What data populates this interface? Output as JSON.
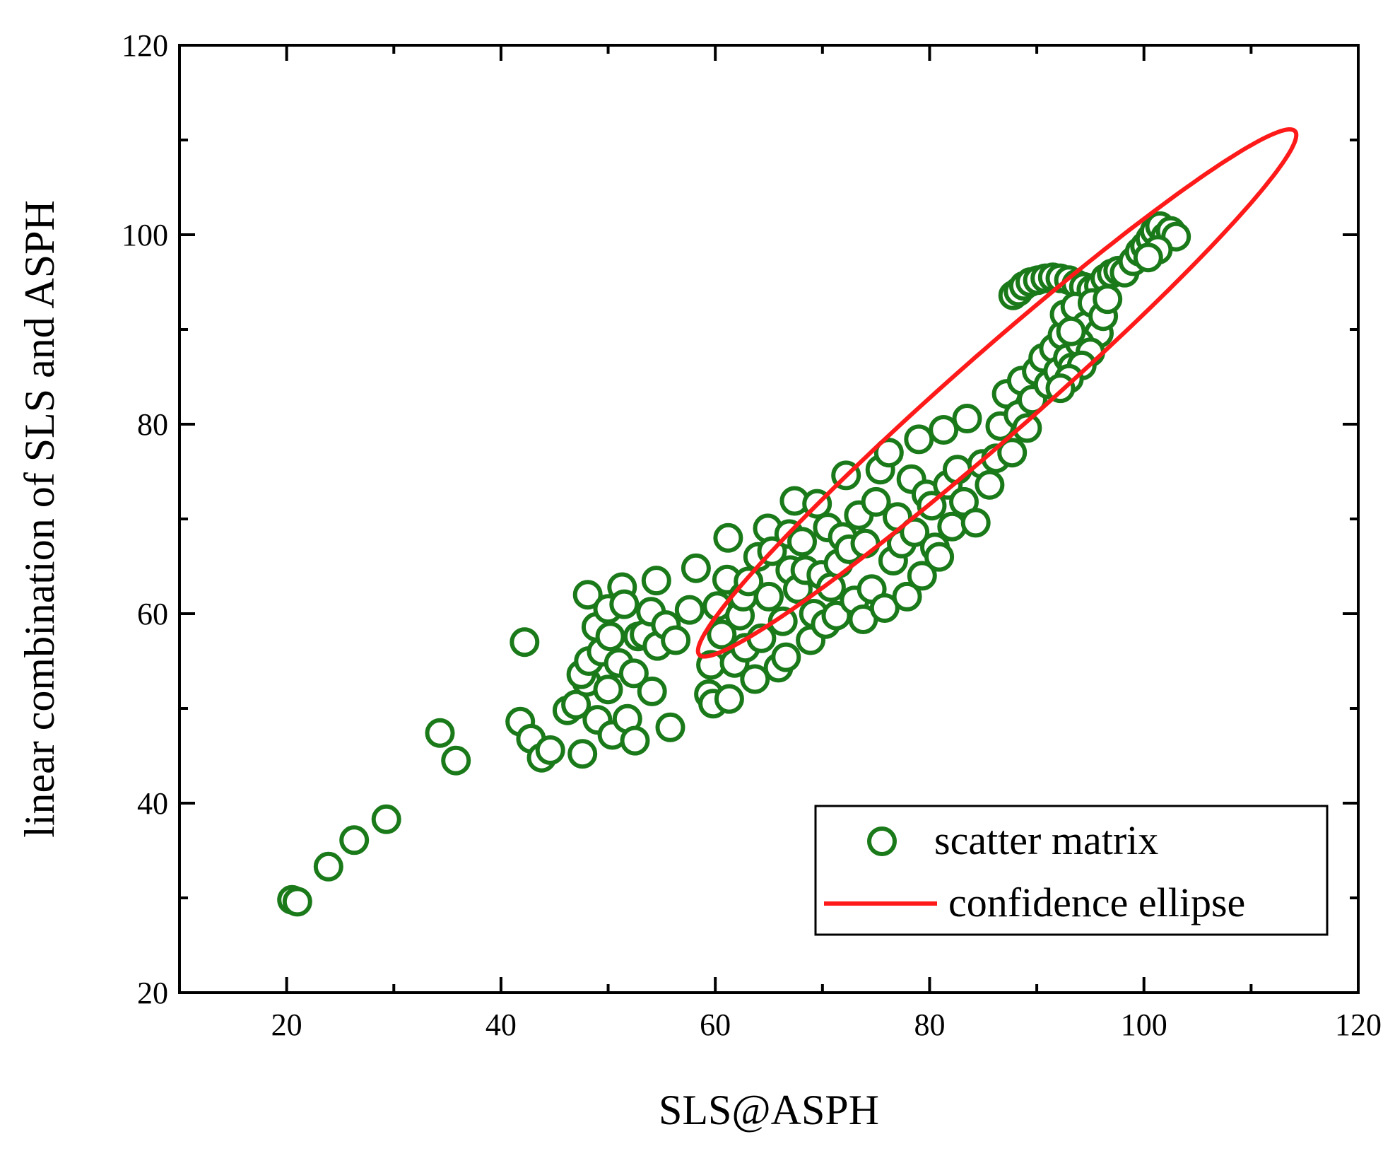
{
  "chart_data": {
    "type": "scatter",
    "xlabel": "SLS@ASPH",
    "ylabel": "linear combination of SLS and ASPH",
    "xlim": [
      10,
      120
    ],
    "ylim": [
      20,
      120
    ],
    "xticks": [
      20,
      40,
      60,
      80,
      100,
      120
    ],
    "yticks": [
      20,
      40,
      60,
      80,
      100,
      120
    ],
    "grid": false,
    "legend_position": "bottom-right",
    "colors": {
      "scatter": "#1a7a1a",
      "ellipse": "#ff1a1a"
    },
    "series": [
      {
        "name": "scatter matrix",
        "kind": "markers",
        "points": [
          [
            20.5,
            29.8
          ],
          [
            21.0,
            29.6
          ],
          [
            23.9,
            33.3
          ],
          [
            26.3,
            36.1
          ],
          [
            29.3,
            38.3
          ],
          [
            34.3,
            47.4
          ],
          [
            35.8,
            44.5
          ],
          [
            42.2,
            57.0
          ],
          [
            41.8,
            48.6
          ],
          [
            42.8,
            46.8
          ],
          [
            43.8,
            44.8
          ],
          [
            44.6,
            45.6
          ],
          [
            46.2,
            49.8
          ],
          [
            47.6,
            45.2
          ],
          [
            47.0,
            50.4
          ],
          [
            48.0,
            52.8
          ],
          [
            47.5,
            53.6
          ],
          [
            48.2,
            55.0
          ],
          [
            48.1,
            62.0
          ],
          [
            48.9,
            58.6
          ],
          [
            49.0,
            48.8
          ],
          [
            49.4,
            56.0
          ],
          [
            50.0,
            52.0
          ],
          [
            50.0,
            60.5
          ],
          [
            50.2,
            57.6
          ],
          [
            50.4,
            47.2
          ],
          [
            51.3,
            62.8
          ],
          [
            51.5,
            61.0
          ],
          [
            51.0,
            54.8
          ],
          [
            51.8,
            48.9
          ],
          [
            52.4,
            53.7
          ],
          [
            52.5,
            46.6
          ],
          [
            52.8,
            57.6
          ],
          [
            53.4,
            57.8
          ],
          [
            54.0,
            60.2
          ],
          [
            54.5,
            63.5
          ],
          [
            54.6,
            56.6
          ],
          [
            54.1,
            51.8
          ],
          [
            55.4,
            58.8
          ],
          [
            55.8,
            48.0
          ],
          [
            56.3,
            57.2
          ],
          [
            57.6,
            60.4
          ],
          [
            58.2,
            64.8
          ],
          [
            59.4,
            51.5
          ],
          [
            59.6,
            54.6
          ],
          [
            59.8,
            50.5
          ],
          [
            60.2,
            60.8
          ],
          [
            60.6,
            57.8
          ],
          [
            61.1,
            63.6
          ],
          [
            61.3,
            51.0
          ],
          [
            61.2,
            68.0
          ],
          [
            61.8,
            54.8
          ],
          [
            62.3,
            59.8
          ],
          [
            62.6,
            61.8
          ],
          [
            62.8,
            56.4
          ],
          [
            63.1,
            63.4
          ],
          [
            63.7,
            53.1
          ],
          [
            64.0,
            66.0
          ],
          [
            64.3,
            57.4
          ],
          [
            64.9,
            69.0
          ],
          [
            65.0,
            61.8
          ],
          [
            65.3,
            66.6
          ],
          [
            65.9,
            54.3
          ],
          [
            66.3,
            59.2
          ],
          [
            66.6,
            55.4
          ],
          [
            66.9,
            68.4
          ],
          [
            67.0,
            64.6
          ],
          [
            67.4,
            71.9
          ],
          [
            67.7,
            62.6
          ],
          [
            68.1,
            67.6
          ],
          [
            68.4,
            64.6
          ],
          [
            68.9,
            57.2
          ],
          [
            69.2,
            60.0
          ],
          [
            69.5,
            71.6
          ],
          [
            69.9,
            64.1
          ],
          [
            70.3,
            58.9
          ],
          [
            70.5,
            69.1
          ],
          [
            70.8,
            62.8
          ],
          [
            71.3,
            59.8
          ],
          [
            71.5,
            65.3
          ],
          [
            71.9,
            68.1
          ],
          [
            72.2,
            74.6
          ],
          [
            72.5,
            66.8
          ],
          [
            73.0,
            61.4
          ],
          [
            73.4,
            70.4
          ],
          [
            73.8,
            59.4
          ],
          [
            74.0,
            67.4
          ],
          [
            74.6,
            62.6
          ],
          [
            75.0,
            71.8
          ],
          [
            75.4,
            75.2
          ],
          [
            75.8,
            60.6
          ],
          [
            76.2,
            77.0
          ],
          [
            76.6,
            65.6
          ],
          [
            77.0,
            70.2
          ],
          [
            77.4,
            67.4
          ],
          [
            77.9,
            61.8
          ],
          [
            78.3,
            74.2
          ],
          [
            78.6,
            68.6
          ],
          [
            79.0,
            78.4
          ],
          [
            79.3,
            64.0
          ],
          [
            79.7,
            72.6
          ],
          [
            80.2,
            71.4
          ],
          [
            80.5,
            67.0
          ],
          [
            80.9,
            66.0
          ],
          [
            81.3,
            79.4
          ],
          [
            81.7,
            73.6
          ],
          [
            82.1,
            69.2
          ],
          [
            82.6,
            75.2
          ],
          [
            83.2,
            71.8
          ],
          [
            83.5,
            80.6
          ],
          [
            84.3,
            69.6
          ],
          [
            84.9,
            75.8
          ],
          [
            85.6,
            73.6
          ],
          [
            86.2,
            76.4
          ],
          [
            86.6,
            79.8
          ],
          [
            87.2,
            83.2
          ],
          [
            87.7,
            77.0
          ],
          [
            88.3,
            81.0
          ],
          [
            88.6,
            84.6
          ],
          [
            89.1,
            79.6
          ],
          [
            89.6,
            82.6
          ],
          [
            90.0,
            85.6
          ],
          [
            90.6,
            87.0
          ],
          [
            91.1,
            84.2
          ],
          [
            91.6,
            88.0
          ],
          [
            92.0,
            85.6
          ],
          [
            92.4,
            89.4
          ],
          [
            92.9,
            87.0
          ],
          [
            93.3,
            86.0
          ],
          [
            87.8,
            93.6
          ],
          [
            88.3,
            94.0
          ],
          [
            88.8,
            94.6
          ],
          [
            89.4,
            95.0
          ],
          [
            90.1,
            95.2
          ],
          [
            90.8,
            95.4
          ],
          [
            91.5,
            95.5
          ],
          [
            92.2,
            95.4
          ],
          [
            93.0,
            95.2
          ],
          [
            93.7,
            94.8
          ],
          [
            94.4,
            94.5
          ],
          [
            95.1,
            94.2
          ],
          [
            95.8,
            94.6
          ],
          [
            96.4,
            95.4
          ],
          [
            97.0,
            95.9
          ],
          [
            97.6,
            96.2
          ],
          [
            98.2,
            96.0
          ],
          [
            92.6,
            91.6
          ],
          [
            93.6,
            92.4
          ],
          [
            94.6,
            90.4
          ],
          [
            95.2,
            92.8
          ],
          [
            95.8,
            89.6
          ],
          [
            96.2,
            91.4
          ],
          [
            94.0,
            88.6
          ],
          [
            93.2,
            89.8
          ],
          [
            95.0,
            87.6
          ],
          [
            96.6,
            93.2
          ],
          [
            94.2,
            86.2
          ],
          [
            93.0,
            84.8
          ],
          [
            92.2,
            83.8
          ],
          [
            99.0,
            97.2
          ],
          [
            99.6,
            98.2
          ],
          [
            100.1,
            98.8
          ],
          [
            100.6,
            99.6
          ],
          [
            101.0,
            100.4
          ],
          [
            101.5,
            100.9
          ],
          [
            102.0,
            99.8
          ],
          [
            102.5,
            100.4
          ],
          [
            103.0,
            99.8
          ],
          [
            101.3,
            98.4
          ],
          [
            100.4,
            97.6
          ]
        ]
      },
      {
        "name": "confidence ellipse",
        "kind": "ellipse",
        "center": [
          86.3,
          83.3
        ],
        "semi_major": 39.2,
        "semi_minor": 4.1,
        "angle_deg": 44.9
      }
    ],
    "legend": [
      {
        "label": "scatter matrix",
        "symbol": "circle"
      },
      {
        "label": "confidence ellipse",
        "symbol": "line"
      }
    ]
  }
}
